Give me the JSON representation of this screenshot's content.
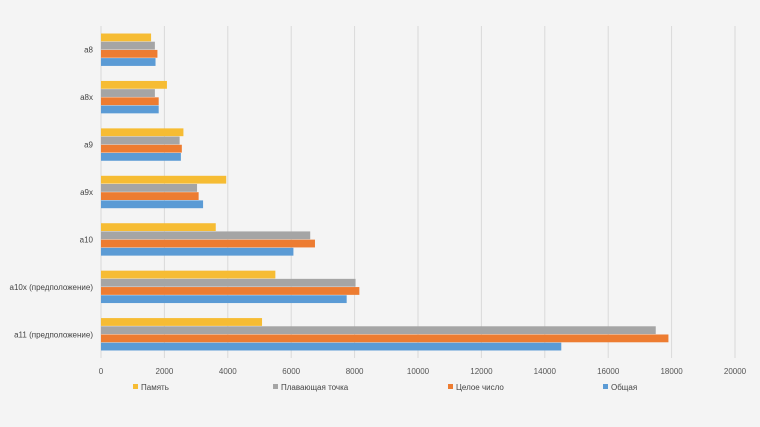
{
  "chart_data": {
    "type": "bar",
    "orientation": "horizontal",
    "categories": [
      "a8",
      "a8x",
      "a9",
      "a9x",
      "a10",
      "a10x (предположение)",
      "a11 (предположение)"
    ],
    "series": [
      {
        "name": "Память",
        "color": "#F6BC33",
        "values": [
          1580,
          2080,
          2600,
          3950,
          3620,
          5500,
          5080
        ]
      },
      {
        "name": "Плавающая точка",
        "color": "#A5A5A5",
        "values": [
          1700,
          1700,
          2480,
          3030,
          6600,
          8030,
          17500
        ]
      },
      {
        "name": "Целое число",
        "color": "#ED7C31",
        "values": [
          1780,
          1820,
          2550,
          3080,
          6750,
          8150,
          17900
        ]
      },
      {
        "name": "Общая",
        "color": "#5B9BD5",
        "values": [
          1720,
          1820,
          2520,
          3220,
          6070,
          7750,
          14520
        ]
      }
    ],
    "x_ticks": [
      "0",
      "2000",
      "4000",
      "6000",
      "8000",
      "10000",
      "12000",
      "14000",
      "16000",
      "18000",
      "20000"
    ],
    "xlim": [
      0,
      20000
    ],
    "grid": true,
    "legend_position": "bottom"
  }
}
